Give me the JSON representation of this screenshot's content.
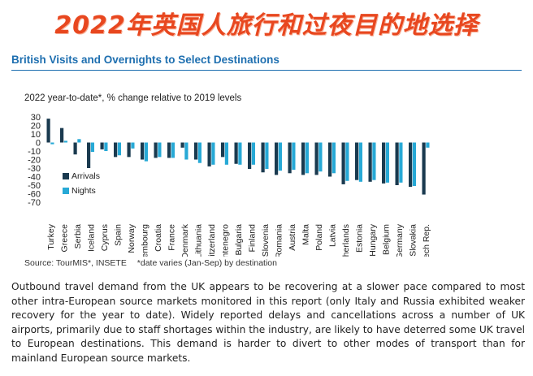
{
  "banner": {
    "title": "2022年英国人旅行和过夜目的地选择"
  },
  "chart_data": {
    "type": "bar",
    "title": "British Visits and Overnights to Select Destinations",
    "subtitle": "2022 year-to-date*, % change relative to 2019 levels",
    "ylim": [
      -70,
      30
    ],
    "yticks": [
      30,
      20,
      10,
      0,
      -10,
      -20,
      -30,
      -40,
      -50,
      -60,
      -70
    ],
    "grid": false,
    "legend_position": "left",
    "categories": [
      "Turkey",
      "Greece",
      "Serbia",
      "Iceland",
      "Cyprus",
      "Spain",
      "Norway",
      "Luxembourg",
      "Croatia",
      "France",
      "Denmark",
      "Lithuania",
      "Switzerland",
      "Montenegro",
      "Bulgaria",
      "Finland",
      "Slovenia",
      "Romania",
      "Austria",
      "Malta",
      "Poland",
      "Latvia",
      "Netherlands",
      "Estonia",
      "Hungary",
      "Belgium",
      "Germany",
      "Slovakia",
      "Czech Rep."
    ],
    "series": [
      {
        "name": "Arrivals",
        "color": "#1a3a4f",
        "values": [
          28,
          17,
          -14,
          -30,
          -8,
          -17,
          -17,
          -20,
          -18,
          -18,
          -6,
          -20,
          -28,
          -17,
          -25,
          -31,
          -35,
          -38,
          -36,
          -38,
          -38,
          -40,
          -49,
          -44,
          -46,
          -48,
          -50,
          -52,
          -61
        ]
      },
      {
        "name": "Nights",
        "color": "#27a9d6",
        "values": [
          -2,
          2,
          4,
          -11,
          -10,
          -15,
          -7,
          -22,
          -17,
          -18,
          -20,
          -24,
          -26,
          -26,
          -26,
          -26,
          -31,
          -33,
          -32,
          -36,
          -34,
          -36,
          -45,
          -46,
          -44,
          -47,
          -47,
          -51,
          -6
        ]
      }
    ]
  },
  "source_note": {
    "source": "Source: TourMIS*, INSETE",
    "footnote": "*date varies (Jan-Sep) by destination"
  },
  "body_text": "Outbound travel demand from the UK appears to be recovering at a slower pace compared to most other intra-European source markets monitored in this report (only Italy and Russia exhibited weaker recovery for the year to date). Widely reported delays and cancellations across a number of UK airports, primarily due to staff shortages within the industry, are likely to have deterred some UK travel to European destinations. This demand is harder to divert to other modes of transport than for mainland European source markets."
}
